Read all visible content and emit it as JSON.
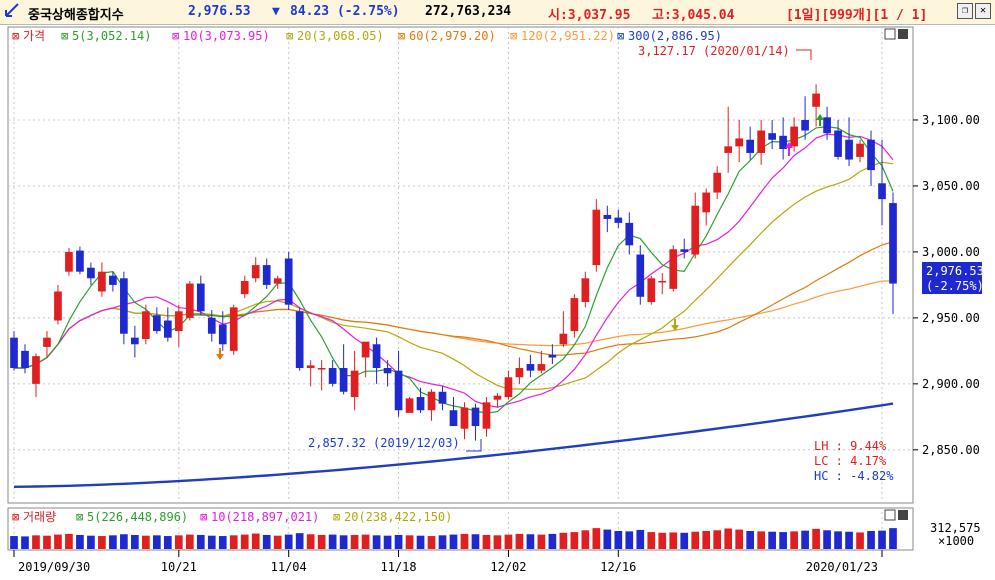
{
  "header": {
    "icon": "chart-arrow-icon",
    "index_name": "중국상해종합지수",
    "price": "2,976.53",
    "change_arrow": "▼",
    "change": "84.23 (-2.75%)",
    "volume": "272,763,234",
    "open": "시:3,037.95",
    "high": "고:3,045.04",
    "period": "[1일][999개][1 / 1]",
    "restore_icon": "restore-icon",
    "close_icon": "close-icon"
  },
  "price_legend": {
    "price": "가격",
    "ma5": "5(3,052.14)",
    "ma10": "10(3,073.95)",
    "ma20": "20(3,068.05)",
    "ma60": "60(2,979.20)",
    "ma120": "120(2,951.22)",
    "ma300": "300(2,886.95)"
  },
  "volume_legend": {
    "volume": "거래량",
    "ma5": "5(226,448,896)",
    "ma10": "10(218,897,021)",
    "ma20": "20(238,422,150)"
  },
  "annotations": {
    "high_label": "3,127.17 (2020/01/14)",
    "low_label": "2,857.32 (2019/12/03)",
    "lh": "LH :  9.44%",
    "lc": "LC :  4.17%",
    "hc": "HC : -4.82%",
    "last_price": "2,976.53",
    "last_change": "(-2.75%)",
    "volume_scale_value": "312,575",
    "volume_scale_unit": "×1000"
  },
  "colors": {
    "up": "#e02020",
    "down": "#1e2ad0",
    "ma5": "#2ca02c",
    "ma10": "#e020e0",
    "ma20": "#b5a80a",
    "ma60": "#e07a10",
    "ma120": "#ff9933",
    "ma300": "#1f3fbf"
  },
  "chart_data": [
    {
      "type": "candlestick",
      "ylim": [
        2815,
        3150
      ],
      "yticks": [
        "3,100.00",
        "3,050.00",
        "3,000.00",
        "2,950.00",
        "2,900.00",
        "2,850.00"
      ],
      "x_tick_labels": [
        "2019/09/30",
        "10/21",
        "11/04",
        "11/18",
        "12/02",
        "12/16",
        "2020/01/23"
      ],
      "ohlc": [
        [
          2935,
          2940,
          2910,
          2912
        ],
        [
          2925,
          2930,
          2908,
          2912
        ],
        [
          2900,
          2923,
          2890,
          2921
        ],
        [
          2928,
          2940,
          2920,
          2935
        ],
        [
          2948,
          2975,
          2945,
          2970
        ],
        [
          2985,
          3003,
          2982,
          3000
        ],
        [
          3001,
          3004,
          2983,
          2985
        ],
        [
          2988,
          2992,
          2975,
          2980
        ],
        [
          2970,
          2992,
          2966,
          2985
        ],
        [
          2982,
          2985,
          2970,
          2975
        ],
        [
          2980,
          2985,
          2930,
          2938
        ],
        [
          2935,
          2944,
          2920,
          2930
        ],
        [
          2934,
          2960,
          2930,
          2955
        ],
        [
          2952,
          2958,
          2938,
          2940
        ],
        [
          2948,
          2958,
          2932,
          2935
        ],
        [
          2940,
          2960,
          2928,
          2955
        ],
        [
          2950,
          2978,
          2948,
          2976
        ],
        [
          2976,
          2982,
          2952,
          2955
        ],
        [
          2950,
          2956,
          2932,
          2938
        ],
        [
          2945,
          2955,
          2925,
          2930
        ],
        [
          2925,
          2960,
          2922,
          2958
        ],
        [
          2968,
          2982,
          2965,
          2978
        ],
        [
          2980,
          2996,
          2977,
          2990
        ],
        [
          2990,
          2995,
          2972,
          2975
        ],
        [
          2976,
          2982,
          2972,
          2980
        ],
        [
          2995,
          3000,
          2956,
          2960
        ],
        [
          2955,
          2958,
          2910,
          2912
        ],
        [
          2912,
          2918,
          2898,
          2914
        ],
        [
          2912,
          2918,
          2895,
          2912
        ],
        [
          2912,
          2918,
          2898,
          2900
        ],
        [
          2912,
          2930,
          2892,
          2894
        ],
        [
          2890,
          2925,
          2880,
          2910
        ],
        [
          2920,
          2930,
          2905,
          2932
        ],
        [
          2930,
          2935,
          2900,
          2912
        ],
        [
          2912,
          2918,
          2898,
          2908
        ],
        [
          2910,
          2925,
          2875,
          2880
        ],
        [
          2878,
          2890,
          2880,
          2889
        ],
        [
          2890,
          2897,
          2878,
          2880
        ],
        [
          2880,
          2896,
          2872,
          2894
        ],
        [
          2894,
          2898,
          2880,
          2885
        ],
        [
          2880,
          2890,
          2870,
          2868
        ],
        [
          2866,
          2886,
          2858,
          2882
        ],
        [
          2882,
          2885,
          2857,
          2868
        ],
        [
          2866,
          2890,
          2860,
          2886
        ],
        [
          2888,
          2893,
          2882,
          2891
        ],
        [
          2890,
          2910,
          2888,
          2905
        ],
        [
          2905,
          2920,
          2900,
          2912
        ],
        [
          2915,
          2922,
          2905,
          2910
        ],
        [
          2910,
          2925,
          2908,
          2915
        ],
        [
          2922,
          2930,
          2915,
          2920
        ],
        [
          2930,
          2955,
          2928,
          2938
        ],
        [
          2940,
          2968,
          2935,
          2965
        ],
        [
          2962,
          2985,
          2958,
          2980
        ],
        [
          2990,
          3040,
          2985,
          3032
        ],
        [
          3028,
          3035,
          3015,
          3025
        ],
        [
          3026,
          3032,
          3018,
          3022
        ],
        [
          3022,
          3030,
          2998,
          3005
        ],
        [
          2998,
          3005,
          2960,
          2966
        ],
        [
          2962,
          2982,
          2960,
          2980
        ],
        [
          2978,
          2984,
          2968,
          2978
        ],
        [
          2972,
          3005,
          2970,
          3002
        ],
        [
          3002,
          3010,
          2995,
          3000
        ],
        [
          2998,
          3045,
          2995,
          3035
        ],
        [
          3030,
          3048,
          3020,
          3045
        ],
        [
          3045,
          3065,
          3040,
          3060
        ],
        [
          3075,
          3110,
          3060,
          3080
        ],
        [
          3080,
          3100,
          3068,
          3086
        ],
        [
          3085,
          3095,
          3070,
          3075
        ],
        [
          3075,
          3100,
          3066,
          3092
        ],
        [
          3090,
          3100,
          3078,
          3085
        ],
        [
          3088,
          3102,
          3070,
          3078
        ],
        [
          3080,
          3102,
          3076,
          3095
        ],
        [
          3100,
          3118,
          3085,
          3092
        ],
        [
          3110,
          3127,
          3095,
          3120
        ],
        [
          3102,
          3110,
          3085,
          3090
        ],
        [
          3092,
          3100,
          3070,
          3072
        ],
        [
          3085,
          3102,
          3065,
          3070
        ],
        [
          3072,
          3085,
          3068,
          3082
        ],
        [
          3085,
          3092,
          3050,
          3062
        ],
        [
          3052,
          3085,
          3020,
          3040
        ],
        [
          3037,
          3045,
          2953,
          2976
        ]
      ]
    },
    {
      "type": "bar",
      "title": "거래량",
      "ylim": [
        0,
        312575
      ],
      "values": [
        180,
        175,
        190,
        185,
        200,
        210,
        195,
        185,
        180,
        190,
        205,
        195,
        185,
        190,
        180,
        190,
        200,
        195,
        185,
        180,
        190,
        200,
        215,
        195,
        185,
        200,
        220,
        205,
        195,
        200,
        190,
        195,
        200,
        190,
        185,
        195,
        190,
        185,
        180,
        190,
        200,
        210,
        205,
        195,
        190,
        200,
        210,
        205,
        200,
        210,
        225,
        235,
        260,
        290,
        270,
        250,
        245,
        265,
        235,
        225,
        230,
        225,
        240,
        250,
        260,
        285,
        270,
        250,
        245,
        240,
        235,
        245,
        255,
        280,
        260,
        245,
        240,
        230,
        250,
        255,
        290
      ]
    }
  ]
}
